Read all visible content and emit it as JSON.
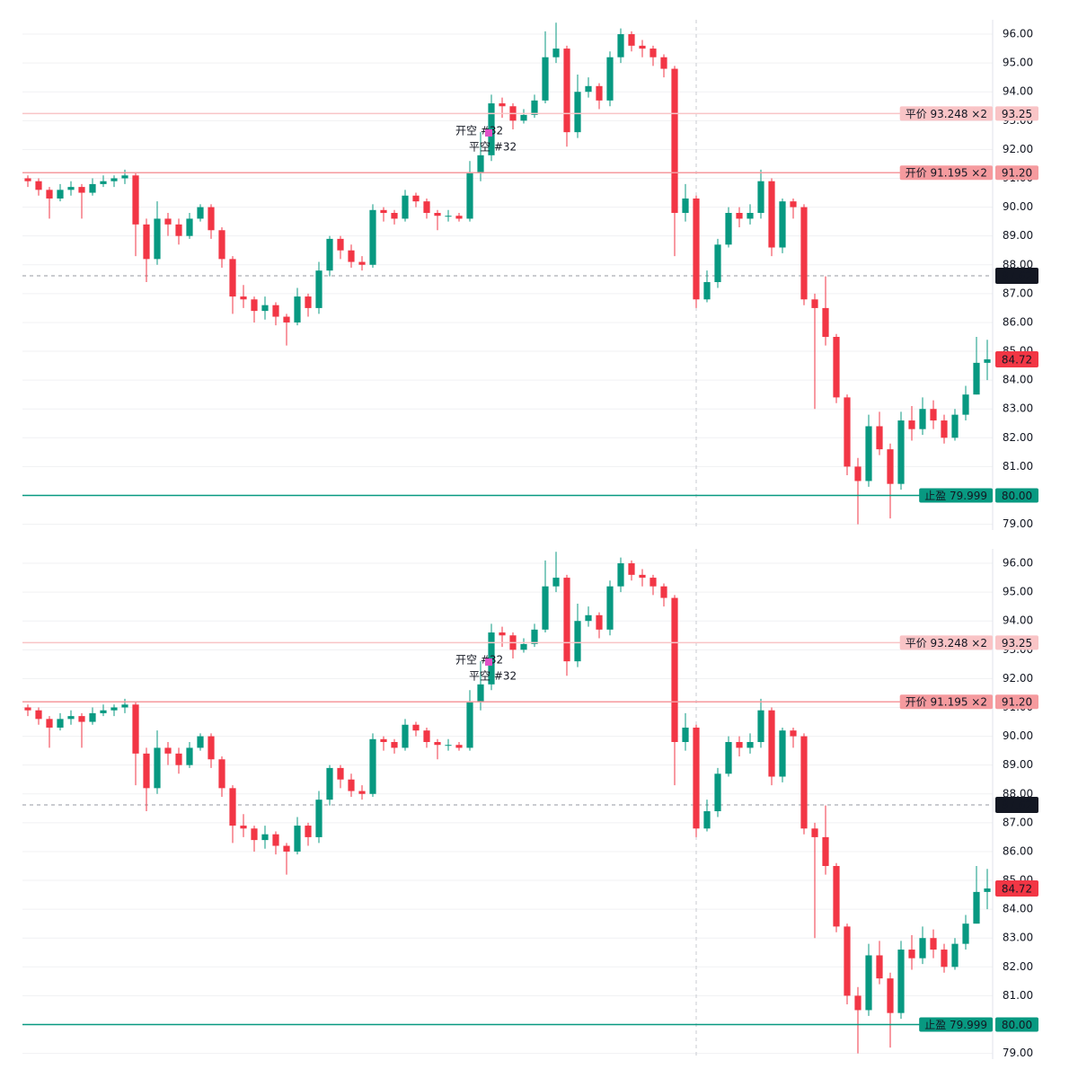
{
  "chart_data": [
    {
      "type": "candlestick",
      "open": [
        91.0,
        90.9,
        90.6,
        90.3,
        90.6,
        90.7,
        90.5,
        90.8,
        90.9,
        91.0,
        91.1,
        89.4,
        88.2,
        89.6,
        89.4,
        89.0,
        89.6,
        90.0,
        89.2,
        88.2,
        86.9,
        86.8,
        86.4,
        86.6,
        86.2,
        86.0,
        86.9,
        86.5,
        87.8,
        88.9,
        88.5,
        88.1,
        88.0,
        89.9,
        89.8,
        89.6,
        90.4,
        90.2,
        89.8,
        89.7,
        89.7,
        89.6,
        91.2,
        91.8,
        93.6,
        93.5,
        93.0,
        93.2,
        93.7,
        95.2,
        95.5,
        92.6,
        94.0,
        94.2,
        93.7,
        95.2,
        96.0,
        95.6,
        95.5,
        95.2,
        94.8,
        89.8,
        90.3,
        86.8,
        87.4,
        88.7,
        89.8,
        89.6,
        89.8,
        90.9,
        88.6,
        90.2,
        90.0,
        86.8,
        86.5,
        85.5,
        83.4,
        81.0,
        80.5,
        82.4,
        81.6,
        80.4,
        82.6,
        82.3,
        83.0,
        82.6,
        82.0,
        82.8,
        83.5,
        84.6
      ],
      "high": [
        91.1,
        91.0,
        90.7,
        90.8,
        90.9,
        90.8,
        91.0,
        91.1,
        91.1,
        91.3,
        91.2,
        89.6,
        90.2,
        89.8,
        89.6,
        89.8,
        90.1,
        90.1,
        89.3,
        88.3,
        87.3,
        86.9,
        86.9,
        86.7,
        86.3,
        87.2,
        87.0,
        88.1,
        89.0,
        89.0,
        88.7,
        88.3,
        90.1,
        90.0,
        89.9,
        90.6,
        90.5,
        90.3,
        89.9,
        89.9,
        89.8,
        91.6,
        92.6,
        93.9,
        93.8,
        93.6,
        93.4,
        93.9,
        96.1,
        96.4,
        95.6,
        94.6,
        94.5,
        94.3,
        95.4,
        96.2,
        96.1,
        95.8,
        95.6,
        95.3,
        94.9,
        90.8,
        90.4,
        87.8,
        88.9,
        90.0,
        90.0,
        90.1,
        91.3,
        91.0,
        90.3,
        90.3,
        90.1,
        87.0,
        87.6,
        85.6,
        83.5,
        81.3,
        82.8,
        82.9,
        81.8,
        82.9,
        83.1,
        83.4,
        83.3,
        82.8,
        83.0,
        83.8,
        85.5,
        85.4
      ],
      "low": [
        90.7,
        90.4,
        89.6,
        90.2,
        90.4,
        89.6,
        90.4,
        90.7,
        90.7,
        90.8,
        88.3,
        87.4,
        88.0,
        89.0,
        88.7,
        88.9,
        89.5,
        88.9,
        87.9,
        86.3,
        86.5,
        86.0,
        86.1,
        85.9,
        85.2,
        85.9,
        86.2,
        86.3,
        87.6,
        88.2,
        87.9,
        87.8,
        87.9,
        89.5,
        89.4,
        89.5,
        90.0,
        89.6,
        89.2,
        89.5,
        89.5,
        89.5,
        90.9,
        91.6,
        93.1,
        92.7,
        92.9,
        93.1,
        93.6,
        95.0,
        92.1,
        92.4,
        93.8,
        93.4,
        93.5,
        95.0,
        95.4,
        95.2,
        94.9,
        94.5,
        88.3,
        89.5,
        86.5,
        86.7,
        87.2,
        88.6,
        89.3,
        89.4,
        89.6,
        88.3,
        88.4,
        89.6,
        86.6,
        83.0,
        85.2,
        83.2,
        80.7,
        79.0,
        80.3,
        81.4,
        79.2,
        80.2,
        81.9,
        82.1,
        82.3,
        81.8,
        81.9,
        82.6,
        83.5,
        84.0
      ],
      "close": [
        90.9,
        90.6,
        90.3,
        90.6,
        90.7,
        90.5,
        90.8,
        90.9,
        91.0,
        91.1,
        89.4,
        88.2,
        89.6,
        89.4,
        89.0,
        89.6,
        90.0,
        89.2,
        88.2,
        86.9,
        86.8,
        86.4,
        86.6,
        86.2,
        86.0,
        86.9,
        86.5,
        87.8,
        88.9,
        88.5,
        88.1,
        88.0,
        89.9,
        89.8,
        89.6,
        90.4,
        90.2,
        89.8,
        89.7,
        89.7,
        89.6,
        91.2,
        91.8,
        93.6,
        93.5,
        93.0,
        93.2,
        93.7,
        95.2,
        95.5,
        92.6,
        94.0,
        94.2,
        93.7,
        95.2,
        96.0,
        95.6,
        95.5,
        95.2,
        94.8,
        89.8,
        90.3,
        86.8,
        87.4,
        88.7,
        89.8,
        89.6,
        89.8,
        90.9,
        88.6,
        90.2,
        90.0,
        86.8,
        86.5,
        85.5,
        83.4,
        81.0,
        80.5,
        82.4,
        81.6,
        80.4,
        82.6,
        82.3,
        83.0,
        82.6,
        82.0,
        82.8,
        83.5,
        84.6,
        84.72
      ],
      "up_color": "#089981",
      "down_color": "#f23645",
      "ylim": [
        78.8,
        96.5
      ],
      "yticks": [
        {
          "value": 79,
          "label": "79.00"
        },
        {
          "value": 80,
          "label": "80.00"
        },
        {
          "value": 81,
          "label": "81.00"
        },
        {
          "value": 82,
          "label": "82.00"
        },
        {
          "value": 83,
          "label": "83.00"
        },
        {
          "value": 84,
          "label": "84.00"
        },
        {
          "value": 85,
          "label": "85.00"
        },
        {
          "value": 86,
          "label": "86.00"
        },
        {
          "value": 87,
          "label": "87.00"
        },
        {
          "value": 88,
          "label": "88.00"
        },
        {
          "value": 89,
          "label": "89.00"
        },
        {
          "value": 90,
          "label": "90.00"
        },
        {
          "value": 91,
          "label": "91.00"
        },
        {
          "value": 92,
          "label": "92.00"
        },
        {
          "value": 93,
          "label": "93.00"
        },
        {
          "value": 94,
          "label": "94.00"
        },
        {
          "value": 95,
          "label": "95.00"
        },
        {
          "value": 96,
          "label": "96.00"
        }
      ],
      "grid": true,
      "levels": [
        {
          "label": "平价 93.248 ×2",
          "value": 93.248,
          "price_label": "93.25",
          "color": "#f9c4c6",
          "text_color": "#333333"
        },
        {
          "label": "开价 91.195 ×2",
          "value": 91.195,
          "price_label": "91.20",
          "color": "#f59a9e",
          "text_color": "#333333"
        },
        {
          "label": "止盈 79.999",
          "value": 79.999,
          "price_label": "80.00",
          "color": "#089981",
          "text_color": "#ffffff"
        }
      ],
      "crosshair": {
        "value": 87.62,
        "label": "87.62",
        "color": "#131722"
      },
      "last": {
        "value": 84.72,
        "label": "84.72",
        "color": "#f23645"
      },
      "markers": [
        "开空 #32",
        "平空 #32"
      ],
      "marker_color": "#e052c8"
    },
    {
      "type": "candlestick",
      "open": [
        91.0,
        90.9,
        90.6,
        90.3,
        90.6,
        90.7,
        90.5,
        90.8,
        90.9,
        91.0,
        91.1,
        89.4,
        88.2,
        89.6,
        89.4,
        89.0,
        89.6,
        90.0,
        89.2,
        88.2,
        86.9,
        86.8,
        86.4,
        86.6,
        86.2,
        86.0,
        86.9,
        86.5,
        87.8,
        88.9,
        88.5,
        88.1,
        88.0,
        89.9,
        89.8,
        89.6,
        90.4,
        90.2,
        89.8,
        89.7,
        89.7,
        89.6,
        91.2,
        91.8,
        93.6,
        93.5,
        93.0,
        93.2,
        93.7,
        95.2,
        95.5,
        92.6,
        94.0,
        94.2,
        93.7,
        95.2,
        96.0,
        95.6,
        95.5,
        95.2,
        94.8,
        89.8,
        90.3,
        86.8,
        87.4,
        88.7,
        89.8,
        89.6,
        89.8,
        90.9,
        88.6,
        90.2,
        90.0,
        86.8,
        86.5,
        85.5,
        83.4,
        81.0,
        80.5,
        82.4,
        81.6,
        80.4,
        82.6,
        82.3,
        83.0,
        82.6,
        82.0,
        82.8,
        83.5,
        84.6
      ],
      "high": [
        91.1,
        91.0,
        90.7,
        90.8,
        90.9,
        90.8,
        91.0,
        91.1,
        91.1,
        91.3,
        91.2,
        89.6,
        90.2,
        89.8,
        89.6,
        89.8,
        90.1,
        90.1,
        89.3,
        88.3,
        87.3,
        86.9,
        86.9,
        86.7,
        86.3,
        87.2,
        87.0,
        88.1,
        89.0,
        89.0,
        88.7,
        88.3,
        90.1,
        90.0,
        89.9,
        90.6,
        90.5,
        90.3,
        89.9,
        89.9,
        89.8,
        91.6,
        92.6,
        93.9,
        93.8,
        93.6,
        93.4,
        93.9,
        96.1,
        96.4,
        95.6,
        94.6,
        94.5,
        94.3,
        95.4,
        96.2,
        96.1,
        95.8,
        95.6,
        95.3,
        94.9,
        90.8,
        90.4,
        87.8,
        88.9,
        90.0,
        90.0,
        90.1,
        91.3,
        91.0,
        90.3,
        90.3,
        90.1,
        87.0,
        87.6,
        85.6,
        83.5,
        81.3,
        82.8,
        82.9,
        81.8,
        82.9,
        83.1,
        83.4,
        83.3,
        82.8,
        83.0,
        83.8,
        85.5,
        85.4
      ],
      "low": [
        90.7,
        90.4,
        89.6,
        90.2,
        90.4,
        89.6,
        90.4,
        90.7,
        90.7,
        90.8,
        88.3,
        87.4,
        88.0,
        89.0,
        88.7,
        88.9,
        89.5,
        88.9,
        87.9,
        86.3,
        86.5,
        86.0,
        86.1,
        85.9,
        85.2,
        85.9,
        86.2,
        86.3,
        87.6,
        88.2,
        87.9,
        87.8,
        87.9,
        89.5,
        89.4,
        89.5,
        90.0,
        89.6,
        89.2,
        89.5,
        89.5,
        89.5,
        90.9,
        91.6,
        93.1,
        92.7,
        92.9,
        93.1,
        93.6,
        95.0,
        92.1,
        92.4,
        93.8,
        93.4,
        93.5,
        95.0,
        95.4,
        95.2,
        94.9,
        94.5,
        88.3,
        89.5,
        86.5,
        86.7,
        87.2,
        88.6,
        89.3,
        89.4,
        89.6,
        88.3,
        88.4,
        89.6,
        86.6,
        83.0,
        85.2,
        83.2,
        80.7,
        79.0,
        80.3,
        81.4,
        79.2,
        80.2,
        81.9,
        82.1,
        82.3,
        81.8,
        81.9,
        82.6,
        83.5,
        84.0
      ],
      "close": [
        90.9,
        90.6,
        90.3,
        90.6,
        90.7,
        90.5,
        90.8,
        90.9,
        91.0,
        91.1,
        89.4,
        88.2,
        89.6,
        89.4,
        89.0,
        89.6,
        90.0,
        89.2,
        88.2,
        86.9,
        86.8,
        86.4,
        86.6,
        86.2,
        86.0,
        86.9,
        86.5,
        87.8,
        88.9,
        88.5,
        88.1,
        88.0,
        89.9,
        89.8,
        89.6,
        90.4,
        90.2,
        89.8,
        89.7,
        89.7,
        89.6,
        91.2,
        91.8,
        93.6,
        93.5,
        93.0,
        93.2,
        93.7,
        95.2,
        95.5,
        92.6,
        94.0,
        94.2,
        93.7,
        95.2,
        96.0,
        95.6,
        95.5,
        95.2,
        94.8,
        89.8,
        90.3,
        86.8,
        87.4,
        88.7,
        89.8,
        89.6,
        89.8,
        90.9,
        88.6,
        90.2,
        90.0,
        86.8,
        86.5,
        85.5,
        83.4,
        81.0,
        80.5,
        82.4,
        81.6,
        80.4,
        82.6,
        82.3,
        83.0,
        82.6,
        82.0,
        82.8,
        83.5,
        84.6,
        84.72
      ],
      "up_color": "#089981",
      "down_color": "#f23645",
      "ylim": [
        78.8,
        96.5
      ],
      "yticks": [
        {
          "value": 79,
          "label": "79.00"
        },
        {
          "value": 80,
          "label": "80.00"
        },
        {
          "value": 81,
          "label": "81.00"
        },
        {
          "value": 82,
          "label": "82.00"
        },
        {
          "value": 83,
          "label": "83.00"
        },
        {
          "value": 84,
          "label": "84.00"
        },
        {
          "value": 85,
          "label": "85.00"
        },
        {
          "value": 86,
          "label": "86.00"
        },
        {
          "value": 87,
          "label": "87.00"
        },
        {
          "value": 88,
          "label": "88.00"
        },
        {
          "value": 89,
          "label": "89.00"
        },
        {
          "value": 90,
          "label": "90.00"
        },
        {
          "value": 91,
          "label": "91.00"
        },
        {
          "value": 92,
          "label": "92.00"
        },
        {
          "value": 93,
          "label": "93.00"
        },
        {
          "value": 94,
          "label": "94.00"
        },
        {
          "value": 95,
          "label": "95.00"
        },
        {
          "value": 96,
          "label": "96.00"
        }
      ],
      "grid": true,
      "levels": [
        {
          "label": "平价 93.248 ×2",
          "value": 93.248,
          "price_label": "93.25",
          "color": "#f9c4c6",
          "text_color": "#333333"
        },
        {
          "label": "开价 91.195 ×2",
          "value": 91.195,
          "price_label": "91.20",
          "color": "#f59a9e",
          "text_color": "#333333"
        },
        {
          "label": "止盈 79.999",
          "value": 79.999,
          "price_label": "80.00",
          "color": "#089981",
          "text_color": "#ffffff"
        }
      ],
      "crosshair": {
        "value": 87.62,
        "label": "87.62",
        "color": "#131722"
      },
      "last": {
        "value": 84.72,
        "label": "84.72",
        "color": "#f23645"
      },
      "markers": [
        "开空 #32",
        "平空 #32"
      ],
      "marker_color": "#e052c8"
    }
  ]
}
